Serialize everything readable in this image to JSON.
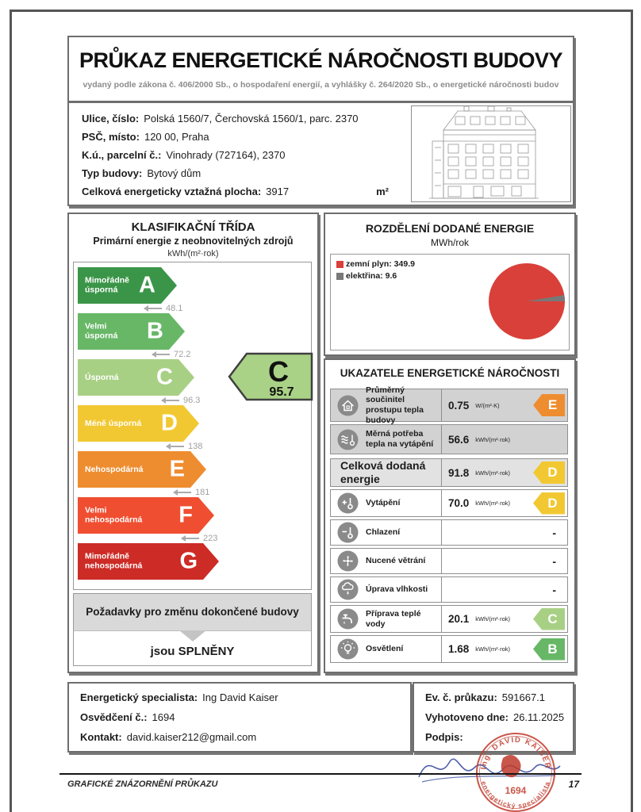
{
  "certificate": {
    "title": "PRŮKAZ ENERGETICKÉ NÁROČNOSTI BUDOVY",
    "subtitle": "vydaný podle zákona č. 406/2000 Sb., o hospodaření energií, a vyhlášky č. 264/2020 Sb., o energetické náročnosti budov"
  },
  "building": {
    "rows": [
      {
        "label": "Ulice, číslo:",
        "value": "Polská 1560/7, Čerchovská 1560/1, parc. 2370"
      },
      {
        "label": "PSČ, místo:",
        "value": "120 00, Praha"
      },
      {
        "label": "K.ú., parcelní č.:",
        "value": "Vinohrady (727164), 2370"
      },
      {
        "label": "Typ budovy:",
        "value": "Bytový dům"
      },
      {
        "label": "Celková energeticky vztažná plocha:",
        "value": "3917",
        "unit": "m²"
      }
    ],
    "elevation_image": "building-elevation-drawing"
  },
  "classification": {
    "title": "KLASIFIKAČNÍ TŘÍDA",
    "subtitle": "Primární energie z neobnovitelných zdrojů",
    "unit": "kWh/(m²·rok)",
    "classes": [
      {
        "letter": "A",
        "label": "Mimořádně úsporná",
        "color": "#3b9548",
        "threshold": "48.1"
      },
      {
        "letter": "B",
        "label": "Velmi úsporná",
        "color": "#67b767",
        "threshold": "72.2"
      },
      {
        "letter": "C",
        "label": "Úsporná",
        "color": "#a8d084",
        "threshold": "96.3"
      },
      {
        "letter": "D",
        "label": "Méně úsporná",
        "color": "#f2c832",
        "threshold": "138"
      },
      {
        "letter": "E",
        "label": "Nehospodárná",
        "color": "#ee8d30",
        "threshold": "181"
      },
      {
        "letter": "F",
        "label": "Velmi nehospodárná",
        "color": "#f04e31",
        "threshold": "223"
      },
      {
        "letter": "G",
        "label": "Mimořádně nehospodárná",
        "color": "#cd2b26"
      }
    ],
    "current": {
      "letter": "C",
      "value": "95.7",
      "color": "#a9d286"
    },
    "requirements": {
      "heading": "Požadavky pro změnu dokončené budovy",
      "result": "jsou SPLNĚNY"
    }
  },
  "delivered_energy": {
    "title": "ROZDĚLENÍ DODANÉ ENERGIE",
    "unit": "MWh/rok",
    "legend": [
      {
        "text": "zemní plyn: 349.9"
      },
      {
        "text": "elektřina: 9.6"
      }
    ]
  },
  "chart_data": {
    "type": "pie",
    "title": "ROZDĚLENÍ DODANÉ ENERGIE",
    "unit": "MWh/rok",
    "labels": [
      "zemní plyn",
      "elektřina"
    ],
    "values": [
      349.9,
      9.6
    ],
    "colors": [
      "#d9403a",
      "#787878"
    ],
    "legend_position": "top-left"
  },
  "indicators": {
    "title": "UKAZATELE ENERGETICKÉ NÁROČNOSTI",
    "rows": [
      {
        "icon": "house-icon",
        "label": "Průměrný součinitel prostupu tepla budovy",
        "value": "0.75",
        "unit": "W/(m²·K)",
        "grade": "E",
        "grade_color": "#ee8d30"
      },
      {
        "icon": "thermometer-waves-icon",
        "label": "Měrná potřeba tepla na vytápění",
        "value": "56.6",
        "unit": "kWh/(m²·rok)"
      },
      {
        "icon": "",
        "label": "Celková dodaná energie",
        "value": "91.8",
        "unit": "kWh/(m²·rok)",
        "grade": "D",
        "grade_color": "#f2c832"
      },
      {
        "icon": "thermometer-plus-icon",
        "label": "Vytápění",
        "value": "70.0",
        "unit": "kWh/(m²·rok)",
        "grade": "D",
        "grade_color": "#f2c832"
      },
      {
        "icon": "thermometer-minus-icon",
        "label": "Chlazení",
        "value": "-"
      },
      {
        "icon": "fan-icon",
        "label": "Nucené větrání",
        "value": "-"
      },
      {
        "icon": "humidity-icon",
        "label": "Úprava vlhkosti",
        "value": "-"
      },
      {
        "icon": "faucet-icon",
        "label": "Příprava teplé vody",
        "value": "20.1",
        "unit": "kWh/(m²·rok)",
        "grade": "C",
        "grade_color": "#a8d084"
      },
      {
        "icon": "bulb-icon",
        "label": "Osvětlení",
        "value": "1.68",
        "unit": "kWh/(m²·rok)",
        "grade": "B",
        "grade_color": "#67b767"
      }
    ]
  },
  "footer": {
    "specialist": [
      {
        "label": "Energetický specialista:",
        "value": "Ing David Kaiser"
      },
      {
        "label": "Osvědčení č.:",
        "value": "1694"
      },
      {
        "label": "Kontakt:",
        "value": "david.kaiser212@gmail.com"
      }
    ],
    "certificate_meta": [
      {
        "label": "Ev. č. průkazu:",
        "value": "591667.1"
      },
      {
        "label": "Vyhotoveno dne:",
        "value": "26.11.2025"
      },
      {
        "label": "Podpis:",
        "value": ""
      }
    ],
    "stamp": {
      "name": "Ing. DAVID KAISER",
      "number": "1694",
      "role": "energetický specialista"
    },
    "rule_caption": "GRAFICKÉ ZNÁZORNĚNÍ PRŮKAZU",
    "page_number": "17"
  }
}
